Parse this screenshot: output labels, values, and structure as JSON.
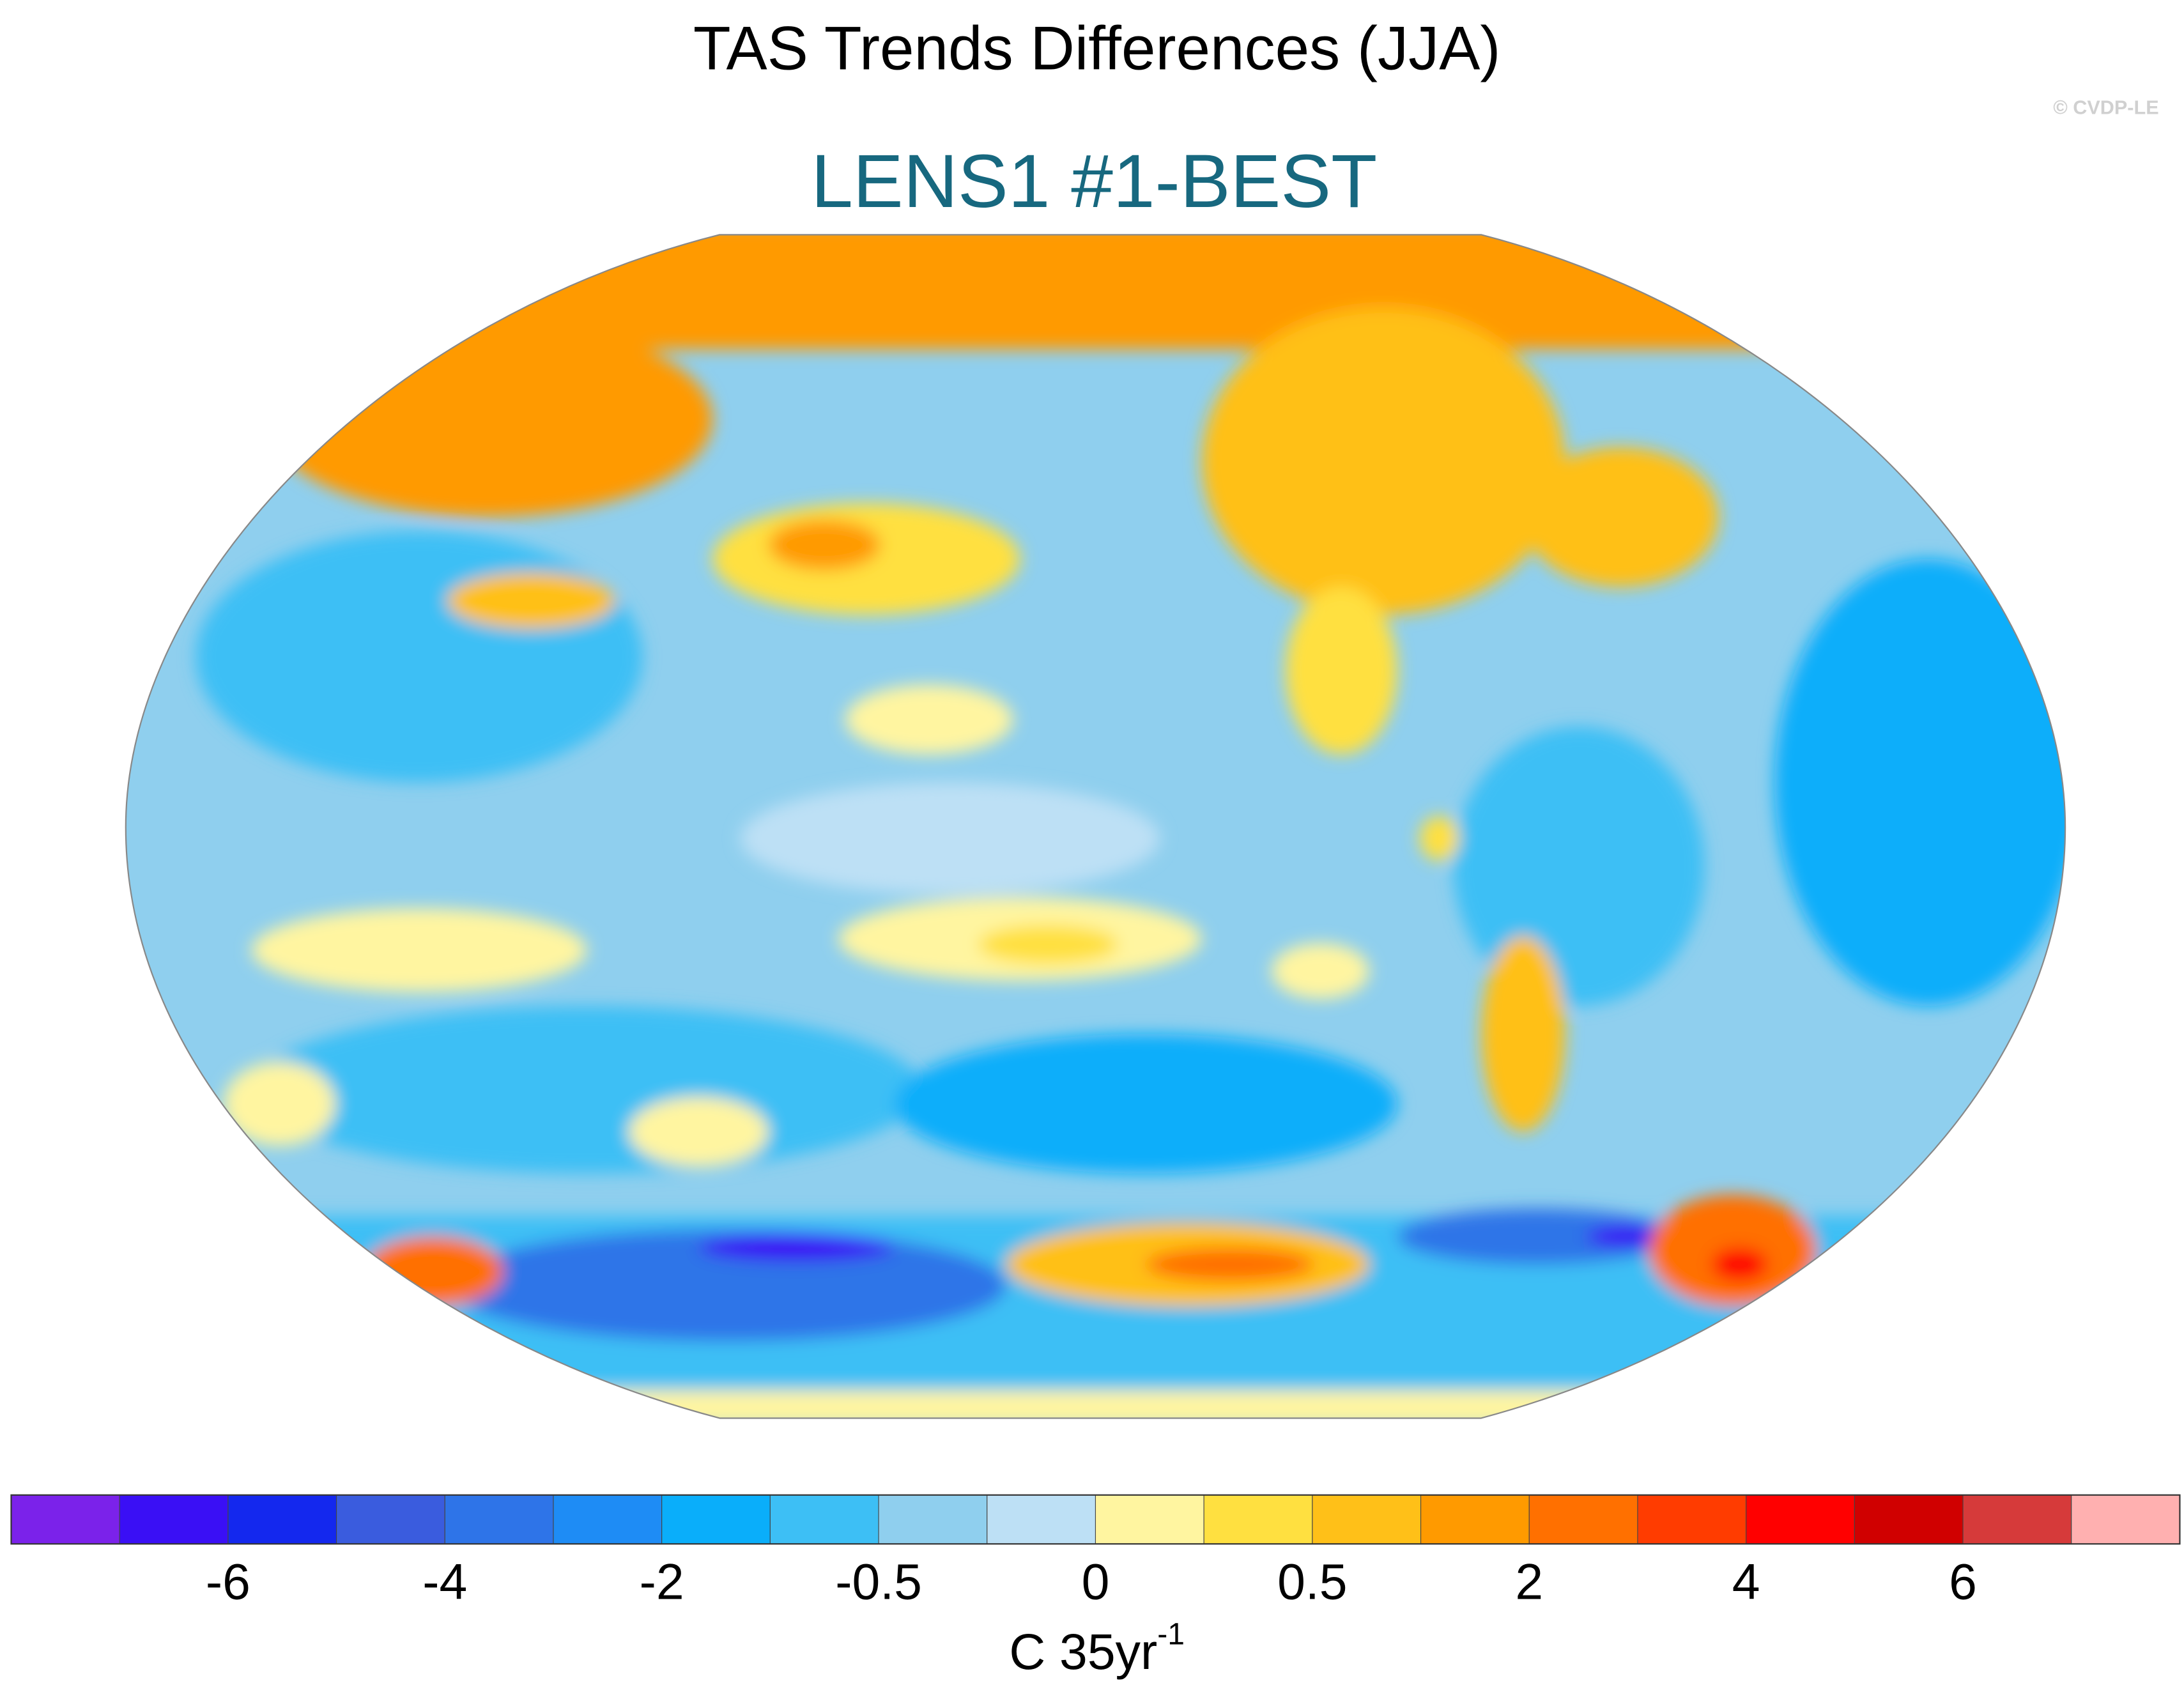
{
  "title": "TAS Trends Differences (JJA)",
  "subtitle": "LENS1 #1-BEST",
  "copyright": "© CVDP-LE",
  "colorbar": {
    "colors": [
      "#7b22ea",
      "#3a0ff5",
      "#1428ee",
      "#3a5cde",
      "#2e74e8",
      "#1e8cf5",
      "#0aaefa",
      "#3dbff5",
      "#8fcfee",
      "#bde0f5",
      "#fff5a0",
      "#ffe040",
      "#ffc018",
      "#ff9a00",
      "#ff7000",
      "#ff3c00",
      "#ff0000",
      "#d00000",
      "#d63a3a",
      "#ffb0b0"
    ],
    "labels": [
      -6,
      -4,
      -2,
      -0.5,
      0,
      0.5,
      2,
      4,
      6
    ],
    "units": "C 35yr",
    "units_exponent": "-1"
  }
}
